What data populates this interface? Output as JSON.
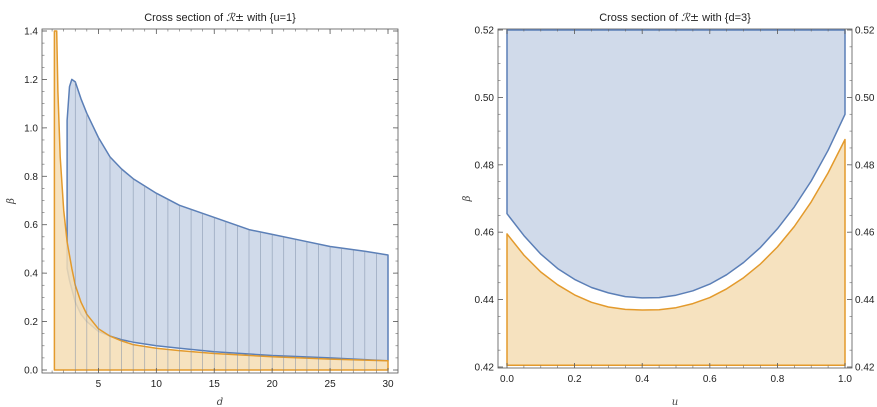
{
  "chart_data": [
    {
      "type": "area",
      "title_prefix": "Cross section of ",
      "title_symbol": "ℛ±",
      "title_suffix": " with {u=1}",
      "xlabel": "d",
      "ylabel": "β",
      "xlim": [
        0,
        30
      ],
      "ylim": [
        0,
        1.4
      ],
      "xticks": [
        "5",
        "10",
        "15",
        "20",
        "25",
        "30"
      ],
      "yticks": [
        "0.0",
        "0.2",
        "0.4",
        "0.6",
        "0.8",
        "1.0",
        "1.2",
        "1.4"
      ],
      "vertical_mesh_lines": true,
      "series": [
        {
          "color": "#5b7fb7",
          "fill": "#c8d4e6",
          "upper": {
            "x": [
              2.3,
              2.5,
              2.7,
              3.0,
              3.5,
              4,
              5,
              6,
              7,
              8,
              10,
              12,
              15,
              18,
              20,
              22,
              25,
              28,
              30
            ],
            "y": [
              1.03,
              1.17,
              1.2,
              1.19,
              1.12,
              1.06,
              0.96,
              0.88,
              0.83,
              0.79,
              0.73,
              0.68,
              0.63,
              0.58,
              0.56,
              0.54,
              0.51,
              0.49,
              0.475
            ]
          },
          "lower": {
            "x": [
              2.3,
              2.5,
              3,
              3.5,
              4,
              5,
              6,
              7,
              8,
              10,
              12,
              15,
              20,
              25,
              30
            ],
            "y": [
              0.42,
              0.37,
              0.28,
              0.23,
              0.2,
              0.16,
              0.14,
              0.125,
              0.115,
              0.1,
              0.09,
              0.075,
              0.06,
              0.05,
              0.038
            ]
          }
        },
        {
          "color": "#e39a2c",
          "fill": "#f5ddb4",
          "upper": {
            "x": [
              1.2,
              1.4,
              1.5,
              1.7,
              2.0,
              2.3,
              2.7,
              3.0,
              3.5,
              4,
              5,
              6,
              7,
              8,
              10,
              12,
              15,
              20,
              25,
              30
            ],
            "y": [
              1.4,
              1.4,
              1.15,
              0.88,
              0.66,
              0.53,
              0.42,
              0.35,
              0.28,
              0.23,
              0.17,
              0.14,
              0.12,
              0.105,
              0.09,
              0.08,
              0.068,
              0.055,
              0.045,
              0.038
            ]
          },
          "lower": {
            "x": [
              1.2,
              30
            ],
            "y": [
              0,
              0
            ]
          }
        }
      ]
    },
    {
      "type": "area",
      "title_prefix": "Cross section of ",
      "title_symbol": "ℛ±",
      "title_suffix": " with {d=3}",
      "xlabel": "u",
      "ylabel": "β",
      "xlim": [
        0,
        1
      ],
      "ylim": [
        0.42,
        0.52
      ],
      "xticks": [
        "0.0",
        "0.2",
        "0.4",
        "0.6",
        "0.8",
        "1.0"
      ],
      "yticks": [
        "0.42",
        "0.44",
        "0.46",
        "0.48",
        "0.50",
        "0.52"
      ],
      "yticks_right": [
        "0.42",
        "0.44",
        "0.46",
        "0.48",
        "0.50",
        "0.52"
      ],
      "series": [
        {
          "color": "#5b7fb7",
          "fill": "#c8d4e6",
          "upper": {
            "x": [
              0,
              1
            ],
            "y": [
              0.52,
              0.52
            ]
          },
          "lower": {
            "x": [
              0,
              0.05,
              0.1,
              0.15,
              0.2,
              0.25,
              0.3,
              0.35,
              0.4,
              0.45,
              0.5,
              0.55,
              0.6,
              0.65,
              0.7,
              0.75,
              0.8,
              0.85,
              0.9,
              0.95,
              1.0
            ],
            "y": [
              0.4655,
              0.459,
              0.4535,
              0.4492,
              0.446,
              0.4436,
              0.442,
              0.4409,
              0.4405,
              0.4406,
              0.4413,
              0.4426,
              0.4446,
              0.4474,
              0.451,
              0.4555,
              0.461,
              0.4675,
              0.4752,
              0.4843,
              0.495
            ]
          }
        },
        {
          "color": "#e39a2c",
          "fill": "#f5ddb4",
          "upper": {
            "x": [
              0,
              0.05,
              0.1,
              0.15,
              0.2,
              0.25,
              0.3,
              0.35,
              0.4,
              0.45,
              0.5,
              0.55,
              0.6,
              0.65,
              0.7,
              0.75,
              0.8,
              0.85,
              0.9,
              0.95,
              1.0
            ],
            "y": [
              0.4595,
              0.4532,
              0.4482,
              0.4444,
              0.4414,
              0.4392,
              0.4378,
              0.4371,
              0.4369,
              0.437,
              0.4376,
              0.4388,
              0.4406,
              0.4432,
              0.4465,
              0.4506,
              0.4556,
              0.4617,
              0.469,
              0.4776,
              0.4875
            ]
          },
          "lower": {
            "x": [
              0,
              1
            ],
            "y": [
              0.4205,
              0.4205
            ]
          }
        }
      ]
    }
  ]
}
